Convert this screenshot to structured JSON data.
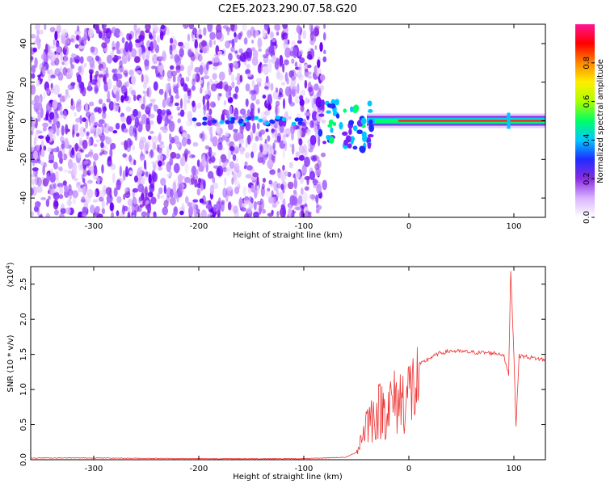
{
  "title": "C2E5.2023.290.07.58.G20",
  "chart_data": [
    {
      "type": "heatmap",
      "xlabel": "Height of straight line (km)",
      "ylabel": "Frequency (Hz)",
      "xlim": [
        -360,
        130
      ],
      "ylim": [
        -50,
        50
      ],
      "xticks": [
        -300,
        -200,
        -100,
        0,
        100
      ],
      "yticks": [
        -40,
        -20,
        0,
        20,
        40
      ],
      "colorbar": {
        "label": "Normalized spectral amplitude",
        "range": [
          0,
          1
        ],
        "ticks": [
          0.0,
          0.2,
          0.4,
          0.6,
          0.8
        ],
        "colors": [
          "#ffffff",
          "#d9b3ff",
          "#8a2be2",
          "#1e2cff",
          "#00c8ff",
          "#00ff66",
          "#aaff00",
          "#ffee00",
          "#ff8800",
          "#ff0000",
          "#ff1493"
        ]
      },
      "features": {
        "noise_region_x": [
          -360,
          -80
        ],
        "carrier_start_x": -40,
        "carrier_frequency": 0,
        "spike_x": 95
      }
    },
    {
      "type": "line",
      "xlabel": "Height of straight line (km)",
      "ylabel": "SNR (10 * v/v)",
      "yscale_label": "(x10",
      "yscale_exp": "4",
      "yscale_close": ")",
      "xlim": [
        -360,
        130
      ],
      "ylim": [
        0,
        2.75
      ],
      "xticks": [
        -300,
        -200,
        -100,
        0,
        100
      ],
      "yticks": [
        0.0,
        0.5,
        1.0,
        1.5,
        2.0,
        2.5
      ],
      "series": [
        {
          "color": "#ee3333",
          "x": [
            -360,
            -300,
            -200,
            -100,
            -60,
            -50,
            -45,
            -40,
            -35,
            -30,
            -25,
            -20,
            -15,
            -10,
            -5,
            0,
            10,
            20,
            30,
            40,
            60,
            80,
            90,
            95,
            97,
            100,
            102,
            105,
            110,
            130
          ],
          "y": [
            0.02,
            0.02,
            0.01,
            0.01,
            0.03,
            0.1,
            0.4,
            0.7,
            0.75,
            0.85,
            0.9,
            0.95,
            1.0,
            1.05,
            1.1,
            1.2,
            1.35,
            1.45,
            1.52,
            1.55,
            1.53,
            1.52,
            1.5,
            1.2,
            2.7,
            1.5,
            0.5,
            1.48,
            1.47,
            1.42
          ]
        }
      ]
    }
  ]
}
